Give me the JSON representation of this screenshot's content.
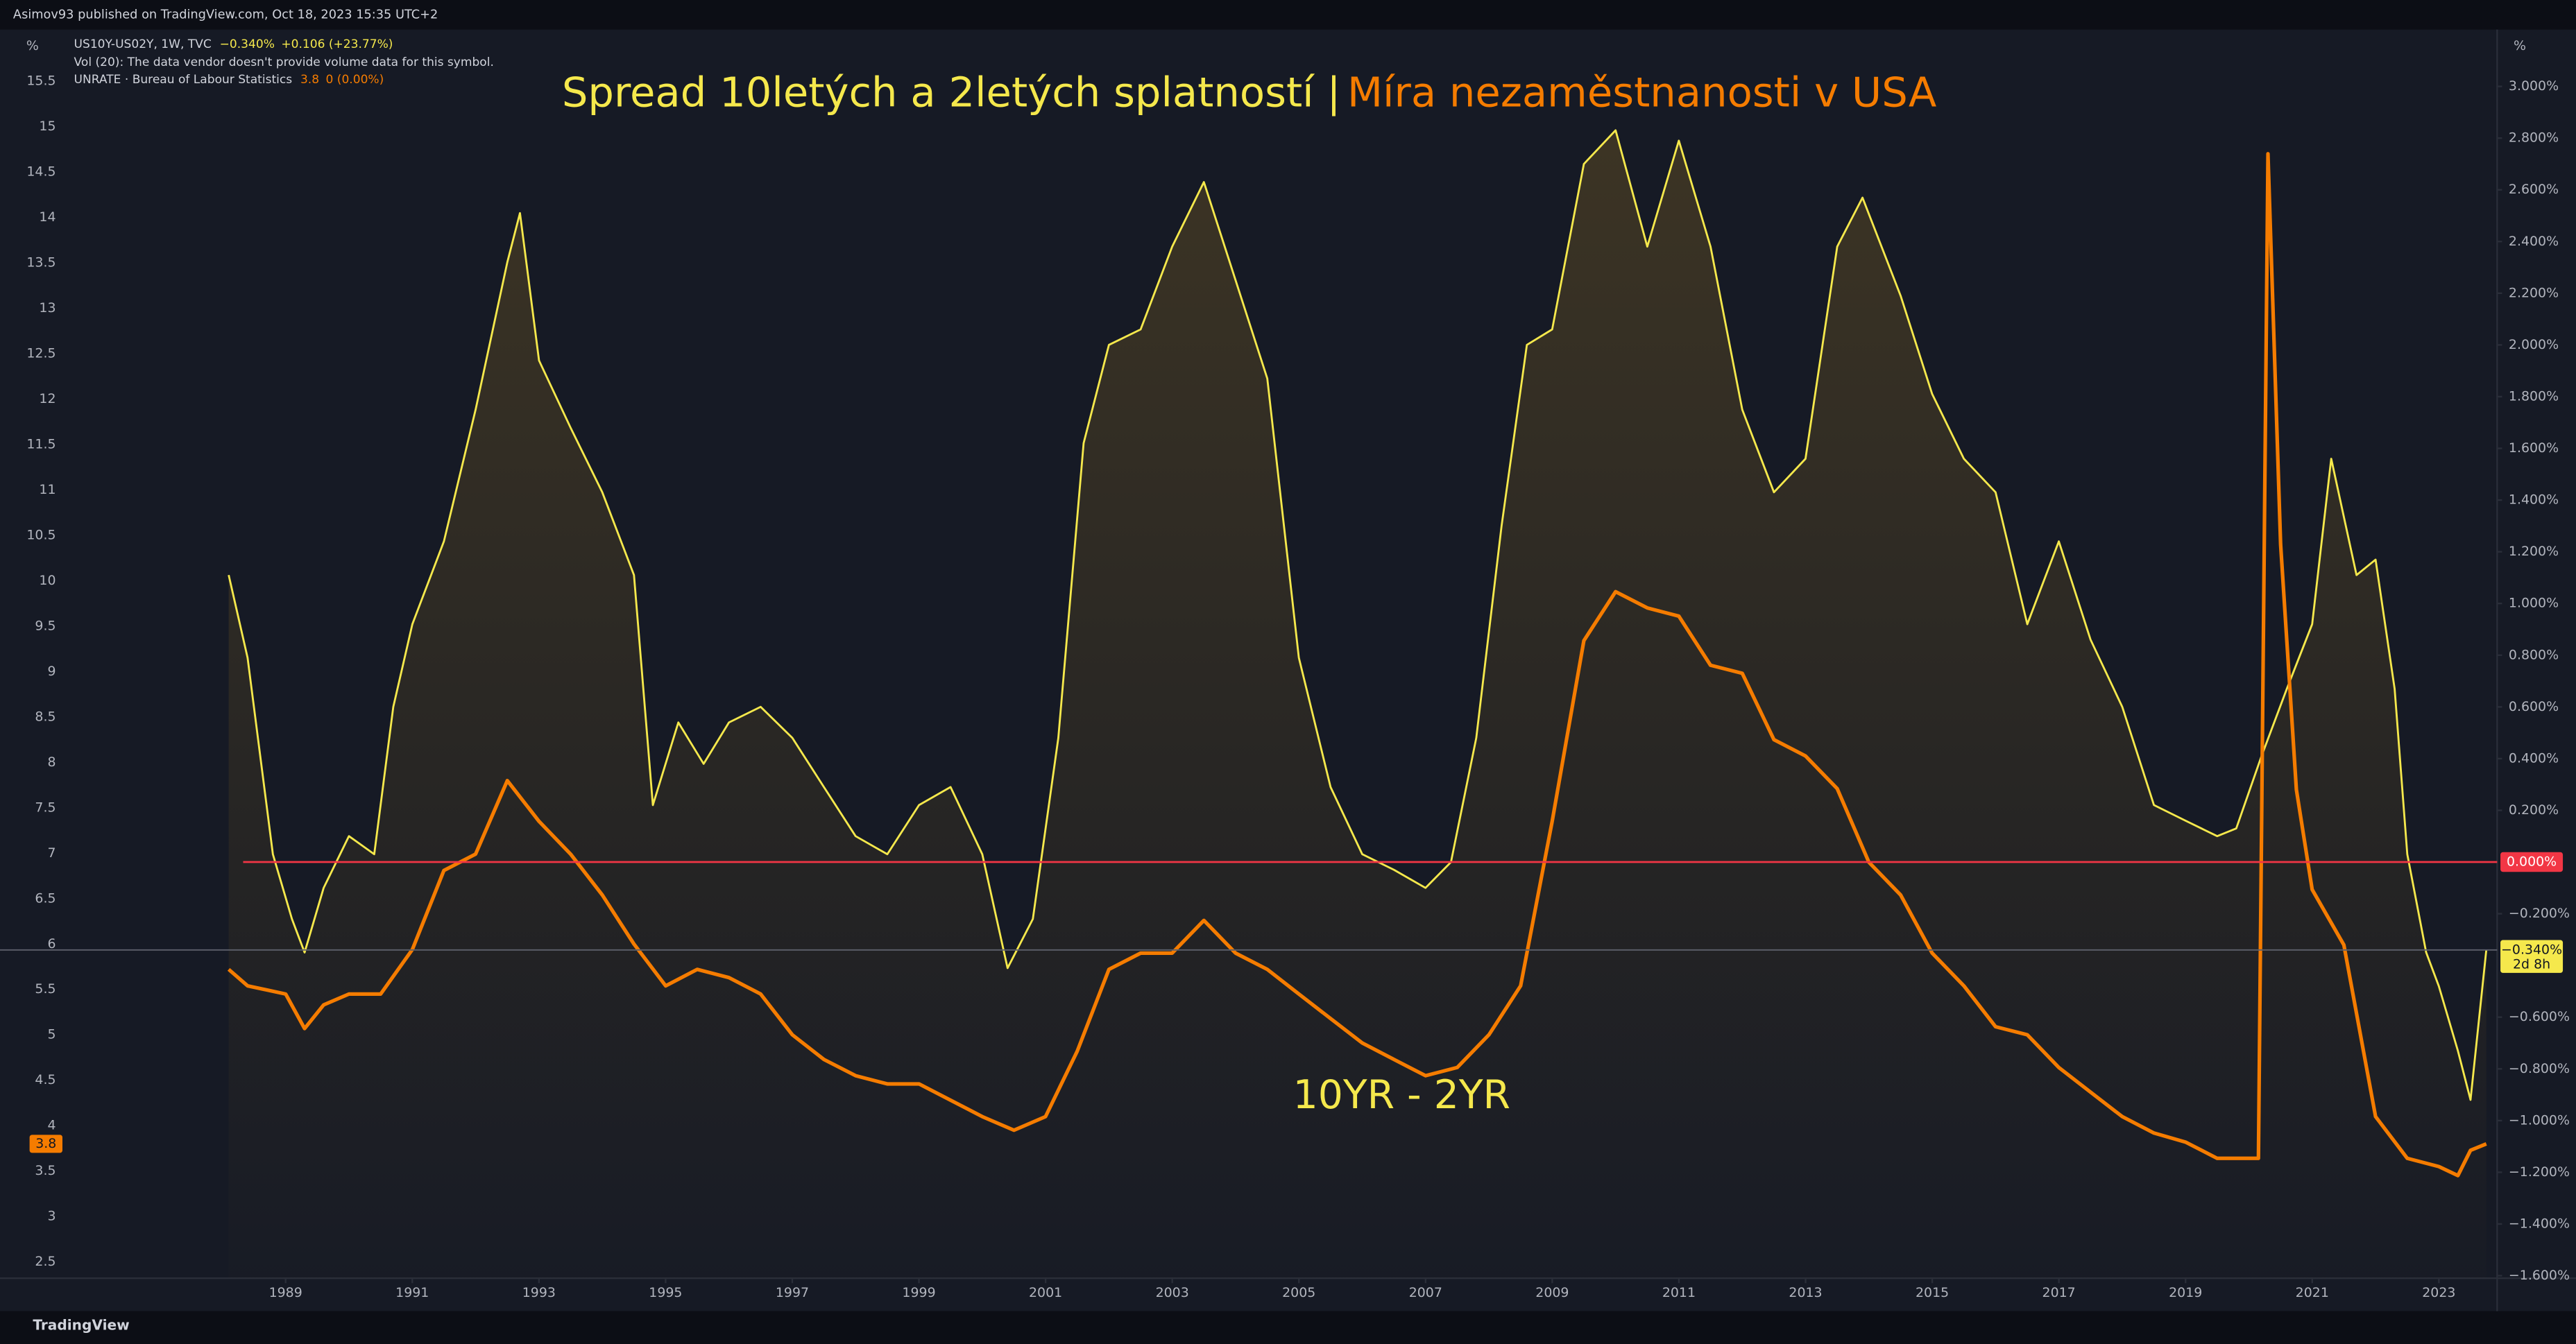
{
  "chart_data": {
    "type": "line",
    "header": "Asimov93 published on TradingView.com, Oct 18, 2023 15:35 UTC+2",
    "title": "Spread 10letých a 2letých splatností",
    "title_separator": "|",
    "subtitle": "Míra nezaměstnanosti v USA",
    "annotation": "10YR - 2YR",
    "volume_note": "Vol (20): The data vendor doesn't provide volume data for this symbol.",
    "ylabel": "%",
    "y2label": "%",
    "footer": "TradingView",
    "grid": false,
    "xlim": [
      1984.49,
      2023.92
    ],
    "xticks": [
      1989,
      1991,
      1993,
      1995,
      1997,
      1999,
      2001,
      2003,
      2005,
      2007,
      2009,
      2011,
      2013,
      2015,
      2017,
      2019,
      2021,
      2023
    ],
    "ylim": [
      2.32,
      15.67
    ],
    "yticks": [
      2.5,
      3,
      3.5,
      4,
      4.5,
      5,
      5.5,
      6,
      6.5,
      7,
      7.5,
      8,
      8.5,
      9,
      9.5,
      10,
      10.5,
      11,
      11.5,
      12,
      12.5,
      13,
      13.5,
      14,
      14.5,
      15,
      15.5
    ],
    "y2lim": [
      -1.61,
      3.08
    ],
    "y2ticks": [
      {
        "value": 3.0,
        "label": "3.000%"
      },
      {
        "value": 2.8,
        "label": "2.800%"
      },
      {
        "value": 2.6,
        "label": "2.600%"
      },
      {
        "value": 2.4,
        "label": "2.400%"
      },
      {
        "value": 2.2,
        "label": "2.200%"
      },
      {
        "value": 2.0,
        "label": "2.000%"
      },
      {
        "value": 1.8,
        "label": "1.800%"
      },
      {
        "value": 1.6,
        "label": "1.600%"
      },
      {
        "value": 1.4,
        "label": "1.400%"
      },
      {
        "value": 1.2,
        "label": "1.200%"
      },
      {
        "value": 1.0,
        "label": "1.000%"
      },
      {
        "value": 0.8,
        "label": "0.800%"
      },
      {
        "value": 0.6,
        "label": "0.600%"
      },
      {
        "value": 0.4,
        "label": "0.400%"
      },
      {
        "value": 0.2,
        "label": "0.200%"
      },
      {
        "value": -0.2,
        "label": "−0.200%"
      },
      {
        "value": -0.6,
        "label": "−0.600%"
      },
      {
        "value": -0.8,
        "label": "−0.800%"
      },
      {
        "value": -1.0,
        "label": "−1.000%"
      },
      {
        "value": -1.2,
        "label": "−1.200%"
      },
      {
        "value": -1.4,
        "label": "−1.400%"
      },
      {
        "value": -1.6,
        "label": "−1.600%"
      }
    ],
    "series": [
      {
        "name": "US10Y-US02Y, 1W, TVC",
        "axis": "y2",
        "color": "#f5e84c",
        "last_label": "−0.340%",
        "change_label": "+0.106 (+23.77%)",
        "x": [
          1988.1,
          1988.4,
          1988.8,
          1989.1,
          1989.3,
          1989.6,
          1990.0,
          1990.4,
          1990.7,
          1991.0,
          1991.5,
          1992.0,
          1992.5,
          1992.7,
          1993.0,
          1993.5,
          1994.0,
          1994.5,
          1994.8,
          1995.2,
          1995.6,
          1996.0,
          1996.5,
          1997.0,
          1997.5,
          1998.0,
          1998.5,
          1999.0,
          1999.5,
          2000.0,
          2000.4,
          2000.8,
          2001.2,
          2001.6,
          2002.0,
          2002.5,
          2003.0,
          2003.5,
          2004.0,
          2004.5,
          2005.0,
          2005.5,
          2006.0,
          2006.5,
          2007.0,
          2007.4,
          2007.8,
          2008.2,
          2008.6,
          2009.0,
          2009.5,
          2010.0,
          2010.5,
          2011.0,
          2011.5,
          2012.0,
          2012.5,
          2013.0,
          2013.5,
          2013.9,
          2014.5,
          2015.0,
          2015.5,
          2016.0,
          2016.5,
          2017.0,
          2017.5,
          2018.0,
          2018.5,
          2019.0,
          2019.5,
          2019.8,
          2020.2,
          2020.6,
          2021.0,
          2021.3,
          2021.7,
          2022.0,
          2022.3,
          2022.5,
          2022.8,
          2023.0,
          2023.3,
          2023.5,
          2023.75
        ],
        "values": [
          1.11,
          0.79,
          0.03,
          -0.22,
          -0.35,
          -0.1,
          0.1,
          0.03,
          0.6,
          0.92,
          1.24,
          1.75,
          2.32,
          2.51,
          1.94,
          1.68,
          1.43,
          1.11,
          0.22,
          0.54,
          0.38,
          0.54,
          0.6,
          0.48,
          0.29,
          0.1,
          0.03,
          0.22,
          0.29,
          0.03,
          -0.41,
          -0.22,
          0.48,
          1.62,
          2.0,
          2.06,
          2.38,
          2.63,
          2.25,
          1.87,
          0.79,
          0.29,
          0.03,
          -0.03,
          -0.1,
          0.0,
          0.48,
          1.3,
          2.0,
          2.06,
          2.7,
          2.83,
          2.38,
          2.79,
          2.38,
          1.75,
          1.43,
          1.56,
          2.38,
          2.57,
          2.19,
          1.81,
          1.56,
          1.43,
          0.92,
          1.24,
          0.86,
          0.6,
          0.22,
          0.16,
          0.1,
          0.13,
          0.41,
          0.67,
          0.92,
          1.56,
          1.11,
          1.17,
          0.67,
          0.03,
          -0.35,
          -0.48,
          -0.73,
          -0.92,
          -0.34
        ]
      },
      {
        "name": "UNRATE · Bureau of Labour Statistics",
        "axis": "y",
        "color": "#f57c00",
        "last_label": "3.8",
        "change_label": "0 (0.00%)",
        "x": [
          1988.1,
          1988.4,
          1989.0,
          1989.3,
          1989.6,
          1990.0,
          1990.5,
          1991.0,
          1991.5,
          1992.0,
          1992.5,
          1993.0,
          1993.5,
          1994.0,
          1994.5,
          1995.0,
          1995.5,
          1996.0,
          1996.5,
          1997.0,
          1997.5,
          1998.0,
          1998.5,
          1999.0,
          1999.5,
          2000.0,
          2000.5,
          2001.0,
          2001.5,
          2002.0,
          2002.5,
          2003.0,
          2003.5,
          2004.0,
          2004.5,
          2005.0,
          2005.5,
          2006.0,
          2006.5,
          2007.0,
          2007.5,
          2008.0,
          2008.5,
          2009.0,
          2009.5,
          2010.0,
          2010.5,
          2011.0,
          2011.5,
          2012.0,
          2012.5,
          2013.0,
          2013.5,
          2014.0,
          2014.5,
          2015.0,
          2015.5,
          2016.0,
          2016.5,
          2017.0,
          2017.5,
          2018.0,
          2018.5,
          2019.0,
          2019.5,
          2020.0,
          2020.15,
          2020.3,
          2020.5,
          2020.75,
          2021.0,
          2021.5,
          2022.0,
          2022.5,
          2023.0,
          2023.3,
          2023.5,
          2023.75
        ],
        "values": [
          5.72,
          5.54,
          5.45,
          5.07,
          5.33,
          5.45,
          5.45,
          5.94,
          6.81,
          6.99,
          7.8,
          7.35,
          6.99,
          6.54,
          6.0,
          5.54,
          5.72,
          5.63,
          5.45,
          5.0,
          4.73,
          4.55,
          4.46,
          4.46,
          4.28,
          4.1,
          3.95,
          4.1,
          4.82,
          5.72,
          5.9,
          5.9,
          6.26,
          5.9,
          5.72,
          5.45,
          5.18,
          4.91,
          4.73,
          4.55,
          4.64,
          5.0,
          5.54,
          7.35,
          9.34,
          9.88,
          9.7,
          9.61,
          9.07,
          8.98,
          8.25,
          8.07,
          7.71,
          6.9,
          6.54,
          5.9,
          5.54,
          5.09,
          5.0,
          4.64,
          4.37,
          4.1,
          3.92,
          3.82,
          3.64,
          3.64,
          3.64,
          14.7,
          10.4,
          7.7,
          6.6,
          5.99,
          4.1,
          3.64,
          3.55,
          3.45,
          3.73,
          3.8
        ]
      }
    ],
    "price_lines": [
      {
        "axis": "y2",
        "value": 0,
        "label": "0.000%",
        "color": "#f23645"
      },
      {
        "axis": "y2",
        "value": -0.34,
        "label": "−0.340%",
        "countdown": "2d 8h",
        "color": "#f5e84c"
      },
      {
        "axis": "y",
        "value": 3.8,
        "label": "3.8",
        "color": "#f57c00"
      }
    ]
  }
}
